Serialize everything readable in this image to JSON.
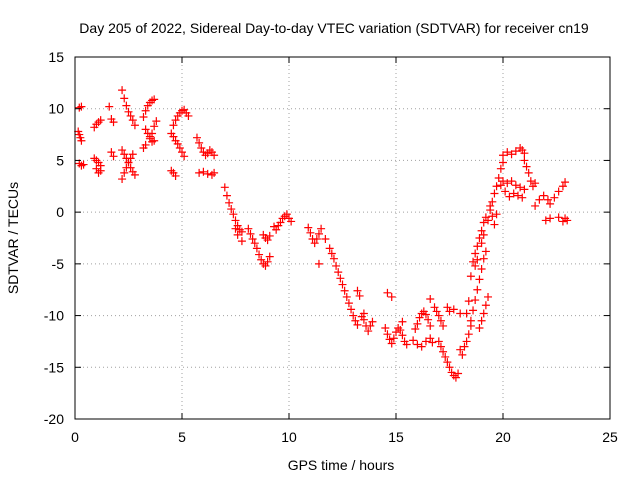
{
  "chart_data": {
    "type": "scatter",
    "title": "Day 205 of 2022, Sidereal Day-to-day VTEC variation (SDTVAR) for receiver cn19",
    "xlabel": "GPS time / hours",
    "ylabel": "SDTVAR / TECUs",
    "xlim": [
      0,
      25
    ],
    "ylim": [
      -20,
      15
    ],
    "xticks": [
      "0",
      "5",
      "10",
      "15",
      "20",
      "25"
    ],
    "yticks": [
      "15",
      "10",
      "5",
      "0",
      "-5",
      "-10",
      "-15",
      "-20"
    ],
    "grid": true,
    "marker": "+",
    "marker_color": "#ff0000",
    "series": [
      {
        "name": "SDTVAR",
        "points": [
          [
            0.2,
            10.1
          ],
          [
            0.3,
            10.2
          ],
          [
            0.15,
            7.8
          ],
          [
            0.2,
            7.5
          ],
          [
            0.25,
            7.2
          ],
          [
            0.3,
            6.9
          ],
          [
            0.2,
            4.7
          ],
          [
            0.3,
            4.5
          ],
          [
            0.4,
            4.6
          ],
          [
            0.9,
            8.2
          ],
          [
            1.0,
            8.5
          ],
          [
            1.1,
            8.7
          ],
          [
            1.2,
            8.9
          ],
          [
            0.9,
            5.2
          ],
          [
            1.0,
            5.0
          ],
          [
            1.1,
            4.8
          ],
          [
            1.2,
            4.5
          ],
          [
            1.0,
            4.2
          ],
          [
            1.1,
            3.8
          ],
          [
            1.2,
            4.0
          ],
          [
            1.6,
            10.2
          ],
          [
            1.7,
            9.0
          ],
          [
            1.8,
            8.7
          ],
          [
            1.7,
            5.8
          ],
          [
            1.8,
            5.4
          ],
          [
            2.2,
            11.8
          ],
          [
            2.3,
            11.0
          ],
          [
            2.4,
            10.3
          ],
          [
            2.5,
            9.7
          ],
          [
            2.6,
            9.3
          ],
          [
            2.7,
            8.9
          ],
          [
            2.8,
            8.4
          ],
          [
            2.2,
            3.2
          ],
          [
            2.3,
            3.8
          ],
          [
            2.4,
            4.3
          ],
          [
            2.5,
            4.8
          ],
          [
            2.6,
            5.2
          ],
          [
            2.7,
            5.6
          ],
          [
            2.2,
            6.0
          ],
          [
            2.3,
            5.6
          ],
          [
            2.4,
            5.2
          ],
          [
            2.5,
            4.8
          ],
          [
            2.6,
            4.3
          ],
          [
            2.7,
            3.9
          ],
          [
            2.8,
            3.6
          ],
          [
            3.2,
            9.2
          ],
          [
            3.3,
            9.8
          ],
          [
            3.4,
            10.3
          ],
          [
            3.5,
            10.6
          ],
          [
            3.6,
            10.8
          ],
          [
            3.7,
            10.9
          ],
          [
            3.3,
            8.0
          ],
          [
            3.4,
            7.6
          ],
          [
            3.5,
            7.1
          ],
          [
            3.6,
            6.8
          ],
          [
            3.7,
            6.9
          ],
          [
            3.2,
            6.2
          ],
          [
            3.3,
            6.5
          ],
          [
            3.5,
            7.3
          ],
          [
            3.6,
            7.6
          ],
          [
            3.7,
            8.3
          ],
          [
            3.8,
            8.8
          ],
          [
            4.6,
            8.4
          ],
          [
            4.7,
            8.9
          ],
          [
            4.8,
            9.3
          ],
          [
            4.9,
            9.6
          ],
          [
            5.0,
            9.8
          ],
          [
            5.1,
            9.9
          ],
          [
            5.2,
            9.6
          ],
          [
            5.3,
            9.3
          ],
          [
            4.5,
            7.6
          ],
          [
            4.6,
            7.3
          ],
          [
            4.7,
            6.9
          ],
          [
            4.8,
            6.6
          ],
          [
            4.9,
            6.2
          ],
          [
            5.0,
            5.8
          ],
          [
            5.1,
            5.4
          ],
          [
            4.6,
            3.8
          ],
          [
            4.7,
            3.5
          ],
          [
            4.5,
            4.0
          ],
          [
            5.7,
            7.2
          ],
          [
            5.8,
            6.7
          ],
          [
            5.9,
            6.2
          ],
          [
            6.0,
            5.8
          ],
          [
            6.1,
            5.5
          ],
          [
            6.2,
            5.7
          ],
          [
            6.3,
            6.0
          ],
          [
            6.4,
            5.8
          ],
          [
            6.5,
            5.5
          ],
          [
            5.8,
            3.8
          ],
          [
            6.0,
            3.9
          ],
          [
            6.2,
            3.7
          ],
          [
            6.4,
            3.6
          ],
          [
            6.5,
            3.8
          ],
          [
            7.0,
            2.4
          ],
          [
            7.1,
            1.6
          ],
          [
            7.2,
            0.9
          ],
          [
            7.3,
            0.3
          ],
          [
            7.4,
            -0.2
          ],
          [
            7.5,
            -0.8
          ],
          [
            7.6,
            -1.3
          ],
          [
            7.7,
            -1.7
          ],
          [
            7.8,
            -1.9
          ],
          [
            8.1,
            -1.6
          ],
          [
            8.2,
            -2.1
          ],
          [
            8.3,
            -2.6
          ],
          [
            8.4,
            -3.0
          ],
          [
            8.5,
            -3.5
          ],
          [
            8.6,
            -4.1
          ],
          [
            8.7,
            -4.6
          ],
          [
            8.8,
            -5.0
          ],
          [
            8.9,
            -5.2
          ],
          [
            9.0,
            -4.8
          ],
          [
            9.1,
            -4.3
          ],
          [
            7.5,
            -1.6
          ],
          [
            7.6,
            -2.2
          ],
          [
            7.8,
            -2.8
          ],
          [
            8.8,
            -2.2
          ],
          [
            8.9,
            -2.5
          ],
          [
            9.0,
            -2.7
          ],
          [
            9.1,
            -2.3
          ],
          [
            9.3,
            -1.4
          ],
          [
            9.4,
            -1.7
          ],
          [
            9.5,
            -1.3
          ],
          [
            9.6,
            -1.0
          ],
          [
            9.7,
            -0.6
          ],
          [
            9.8,
            -0.4
          ],
          [
            9.9,
            -0.2
          ],
          [
            10.0,
            -0.6
          ],
          [
            10.1,
            -0.9
          ],
          [
            10.9,
            -1.5
          ],
          [
            11.0,
            -2.0
          ],
          [
            11.1,
            -2.6
          ],
          [
            11.2,
            -3.0
          ],
          [
            11.3,
            -2.6
          ],
          [
            11.4,
            -2.1
          ],
          [
            11.5,
            -1.6
          ],
          [
            11.4,
            -5.0
          ],
          [
            11.7,
            -2.6
          ],
          [
            11.9,
            -3.5
          ],
          [
            12.0,
            -4.0
          ],
          [
            12.1,
            -4.5
          ],
          [
            12.2,
            -5.2
          ],
          [
            12.3,
            -5.8
          ],
          [
            12.4,
            -6.4
          ],
          [
            12.5,
            -7.0
          ],
          [
            12.6,
            -7.6
          ],
          [
            12.7,
            -8.2
          ],
          [
            12.8,
            -8.8
          ],
          [
            12.9,
            -9.4
          ],
          [
            13.0,
            -10.0
          ],
          [
            13.1,
            -10.5
          ],
          [
            13.2,
            -10.9
          ],
          [
            13.4,
            -10.1
          ],
          [
            13.5,
            -9.8
          ],
          [
            13.2,
            -7.6
          ],
          [
            13.3,
            -8.1
          ],
          [
            13.5,
            -10.4
          ],
          [
            13.6,
            -11.0
          ],
          [
            13.7,
            -11.5
          ],
          [
            13.8,
            -11.0
          ],
          [
            13.9,
            -10.6
          ],
          [
            14.5,
            -11.2
          ],
          [
            14.6,
            -11.8
          ],
          [
            14.7,
            -12.3
          ],
          [
            14.8,
            -12.7
          ],
          [
            14.9,
            -12.2
          ],
          [
            15.0,
            -11.6
          ],
          [
            15.1,
            -11.2
          ],
          [
            14.6,
            -7.8
          ],
          [
            14.8,
            -8.2
          ],
          [
            15.2,
            -11.4
          ],
          [
            15.3,
            -11.9
          ],
          [
            15.4,
            -12.5
          ],
          [
            15.5,
            -12.8
          ],
          [
            15.3,
            -10.6
          ],
          [
            15.9,
            -11.3
          ],
          [
            16.0,
            -10.8
          ],
          [
            16.1,
            -10.2
          ],
          [
            16.2,
            -9.8
          ],
          [
            16.3,
            -9.6
          ],
          [
            16.4,
            -9.9
          ],
          [
            16.5,
            -10.4
          ],
          [
            16.6,
            -11.0
          ],
          [
            15.8,
            -12.4
          ],
          [
            16.0,
            -12.8
          ],
          [
            16.2,
            -13.0
          ],
          [
            16.4,
            -12.5
          ],
          [
            16.6,
            -12.2
          ],
          [
            16.7,
            -12.6
          ],
          [
            16.6,
            -8.4
          ],
          [
            16.8,
            -9.2
          ],
          [
            16.9,
            -9.6
          ],
          [
            17.0,
            -10.0
          ],
          [
            17.1,
            -10.5
          ],
          [
            17.2,
            -11.0
          ],
          [
            17.0,
            -12.5
          ],
          [
            17.1,
            -13.0
          ],
          [
            17.2,
            -13.5
          ],
          [
            17.3,
            -14.0
          ],
          [
            17.4,
            -14.5
          ],
          [
            17.5,
            -15.0
          ],
          [
            17.6,
            -15.5
          ],
          [
            17.7,
            -15.8
          ],
          [
            17.8,
            -16.0
          ],
          [
            17.9,
            -15.6
          ],
          [
            17.4,
            -9.2
          ],
          [
            17.5,
            -9.6
          ],
          [
            17.7,
            -9.4
          ],
          [
            18.0,
            -13.3
          ],
          [
            18.1,
            -13.8
          ],
          [
            18.2,
            -13.0
          ],
          [
            18.3,
            -12.5
          ],
          [
            18.4,
            -11.8
          ],
          [
            18.5,
            -11.0
          ],
          [
            18.0,
            -9.8
          ],
          [
            18.3,
            -9.8
          ],
          [
            18.4,
            -8.6
          ],
          [
            18.5,
            -10.5
          ],
          [
            18.6,
            -9.5
          ],
          [
            18.7,
            -8.5
          ],
          [
            18.8,
            -7.5
          ],
          [
            18.9,
            -6.5
          ],
          [
            19.0,
            -5.5
          ],
          [
            19.1,
            -4.5
          ],
          [
            19.2,
            -3.8
          ],
          [
            18.6,
            -4.8
          ],
          [
            18.7,
            -4.0
          ],
          [
            18.8,
            -3.3
          ],
          [
            18.9,
            -2.5
          ],
          [
            19.0,
            -1.8
          ],
          [
            19.1,
            -1.0
          ],
          [
            19.2,
            -0.5
          ],
          [
            18.5,
            -6.2
          ],
          [
            18.7,
            -5.2
          ],
          [
            18.8,
            -4.6
          ],
          [
            19.0,
            -3.0
          ],
          [
            19.1,
            -2.2
          ],
          [
            18.9,
            -11.2
          ],
          [
            19.0,
            -10.5
          ],
          [
            19.1,
            -9.8
          ],
          [
            19.2,
            -9.0
          ],
          [
            19.3,
            -8.2
          ],
          [
            19.3,
            -0.8
          ],
          [
            19.4,
            0.2
          ],
          [
            19.5,
            1.0
          ],
          [
            19.6,
            1.8
          ],
          [
            19.7,
            2.5
          ],
          [
            19.8,
            3.3
          ],
          [
            19.9,
            4.2
          ],
          [
            20.0,
            4.8
          ],
          [
            19.4,
            0.6
          ],
          [
            19.5,
            -0.4
          ],
          [
            19.6,
            -1.2
          ],
          [
            19.7,
            -0.2
          ],
          [
            20.0,
            5.5
          ],
          [
            20.2,
            5.8
          ],
          [
            20.4,
            5.6
          ],
          [
            20.6,
            5.9
          ],
          [
            20.8,
            6.2
          ],
          [
            20.9,
            6.0
          ],
          [
            21.0,
            5.7
          ],
          [
            19.9,
            2.6
          ],
          [
            20.0,
            3.0
          ],
          [
            20.2,
            2.8
          ],
          [
            20.4,
            3.0
          ],
          [
            20.6,
            2.6
          ],
          [
            20.8,
            2.4
          ],
          [
            21.0,
            2.2
          ],
          [
            20.1,
            2.0
          ],
          [
            20.3,
            1.5
          ],
          [
            20.5,
            1.8
          ],
          [
            20.7,
            1.6
          ],
          [
            20.9,
            1.4
          ],
          [
            21.0,
            5.0
          ],
          [
            21.1,
            4.4
          ],
          [
            21.2,
            3.8
          ],
          [
            21.3,
            3.0
          ],
          [
            21.4,
            2.5
          ],
          [
            21.5,
            2.8
          ],
          [
            21.5,
            0.6
          ],
          [
            21.7,
            1.2
          ],
          [
            21.9,
            1.6
          ],
          [
            22.1,
            1.2
          ],
          [
            22.2,
            0.8
          ],
          [
            22.4,
            1.4
          ],
          [
            22.6,
            2.0
          ],
          [
            22.8,
            2.5
          ],
          [
            22.9,
            2.9
          ],
          [
            22.0,
            -0.8
          ],
          [
            22.2,
            -0.6
          ],
          [
            22.6,
            -0.5
          ],
          [
            22.8,
            -0.9
          ],
          [
            22.9,
            -0.6
          ],
          [
            23.0,
            -0.8
          ]
        ]
      }
    ]
  }
}
